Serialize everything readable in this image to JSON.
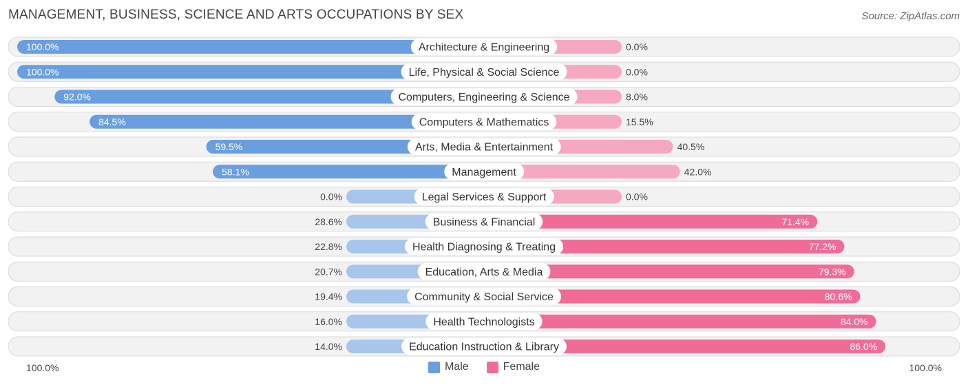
{
  "header": {
    "title": "MANAGEMENT, BUSINESS, SCIENCE AND ARTS OCCUPATIONS BY SEX",
    "source": "Source: ZipAtlas.com"
  },
  "axis": {
    "left_label": "100.0%",
    "right_label": "100.0%"
  },
  "legend": {
    "male": "Male",
    "female": "Female"
  },
  "colors": {
    "male_strong": "#6a9fdf",
    "male_light": "#a8c6ec",
    "female_strong": "#f06c97",
    "female_light": "#f7a8c1",
    "row_bg": "#f2f2f2",
    "row_border": "#d9d9d9"
  },
  "chart_data": {
    "type": "bar",
    "orientation": "horizontal-diverging",
    "title": "MANAGEMENT, BUSINESS, SCIENCE AND ARTS OCCUPATIONS BY SEX",
    "xlim": [
      -100,
      100
    ],
    "categories": [
      "Architecture & Engineering",
      "Life, Physical & Social Science",
      "Computers, Engineering & Science",
      "Computers & Mathematics",
      "Arts, Media & Entertainment",
      "Management",
      "Legal Services & Support",
      "Business & Financial",
      "Health Diagnosing & Treating",
      "Education, Arts & Media",
      "Community & Social Service",
      "Health Technologists",
      "Education Instruction & Library"
    ],
    "series": [
      {
        "name": "Male",
        "values": [
          100.0,
          100.0,
          92.0,
          84.5,
          59.5,
          58.1,
          0.0,
          28.6,
          22.8,
          20.7,
          19.4,
          16.0,
          14.0
        ],
        "labels": [
          "100.0%",
          "100.0%",
          "92.0%",
          "84.5%",
          "59.5%",
          "58.1%",
          "0.0%",
          "28.6%",
          "22.8%",
          "20.7%",
          "19.4%",
          "16.0%",
          "14.0%"
        ]
      },
      {
        "name": "Female",
        "values": [
          0.0,
          0.0,
          8.0,
          15.5,
          40.5,
          42.0,
          0.0,
          71.4,
          77.2,
          79.3,
          80.6,
          84.0,
          86.0
        ],
        "labels": [
          "0.0%",
          "0.0%",
          "8.0%",
          "15.5%",
          "40.5%",
          "42.0%",
          "0.0%",
          "71.4%",
          "77.2%",
          "79.3%",
          "80.6%",
          "84.0%",
          "86.0%"
        ]
      }
    ],
    "legend_position": "bottom-center",
    "grid": false
  }
}
